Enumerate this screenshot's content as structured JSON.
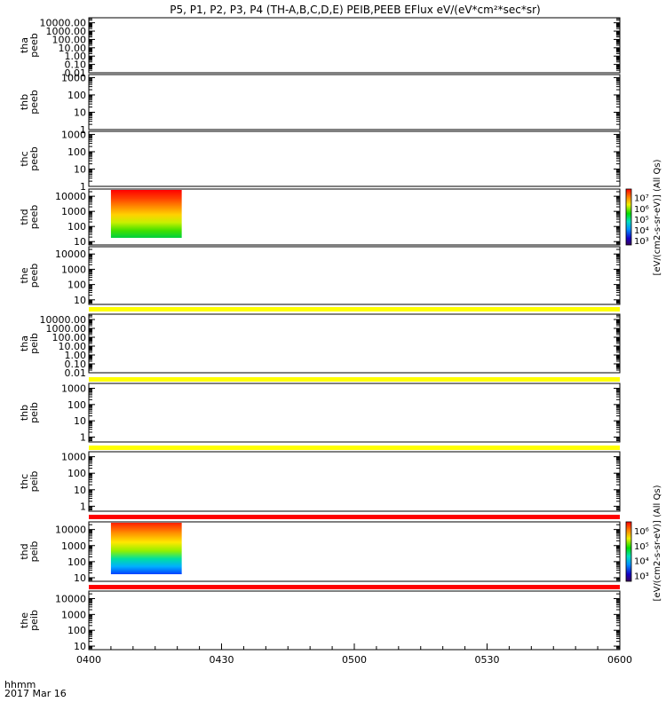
{
  "title": "P5, P1, P2, P3, P4 (TH-A,B,C,D,E) PEIB,PEEB EFlux eV/(eV*cm²*sec*sr)",
  "colors": {
    "background": "#ffffff",
    "axes": "#000000",
    "flag_yellow": "#ffff00",
    "flag_red": "#ff0000"
  },
  "chart_data": {
    "type": "heatmap",
    "panels": [
      {
        "probe": "tha",
        "product": "peeb",
        "ylim": [
          0.01,
          40000
        ],
        "ticks": [
          "10000.00",
          "1000.00",
          "100.00",
          "10.00",
          "1.00",
          "0.10",
          "0.01"
        ],
        "data": false,
        "flag_bar_above": null
      },
      {
        "probe": "thb",
        "product": "peeb",
        "ylim": [
          1,
          1500
        ],
        "ticks": [
          "1000",
          "100",
          "10",
          "1"
        ],
        "data": false,
        "flag_bar_above": null
      },
      {
        "probe": "thc",
        "product": "peeb",
        "ylim": [
          1,
          1500
        ],
        "ticks": [
          "1000",
          "100",
          "10",
          "1"
        ],
        "data": false,
        "flag_bar_above": null
      },
      {
        "probe": "thd",
        "product": "peeb",
        "ylim": [
          6,
          30000
        ],
        "ticks": [
          "10000",
          "1000",
          "100",
          "10"
        ],
        "data": true,
        "data_time": [
          "0405",
          "0421"
        ],
        "flag_bar_above": null
      },
      {
        "probe": "the",
        "product": "peeb",
        "ylim": [
          5,
          30000
        ],
        "ticks": [
          "10000",
          "1000",
          "100",
          "10"
        ],
        "data": false,
        "flag_bar_above": null
      },
      {
        "probe": "tha",
        "product": "peib",
        "ylim": [
          0.01,
          40000
        ],
        "ticks": [
          "10000.00",
          "1000.00",
          "100.00",
          "10.00",
          "1.00",
          "0.10",
          "0.01"
        ],
        "data": false,
        "flag_bar_above": "#ffff00"
      },
      {
        "probe": "thb",
        "product": "peib",
        "ylim": [
          0.5,
          2000
        ],
        "ticks": [
          "1000",
          "100",
          "10",
          "1"
        ],
        "data": false,
        "flag_bar_above": "#ffff00"
      },
      {
        "probe": "thc",
        "product": "peib",
        "ylim": [
          0.5,
          2000
        ],
        "ticks": [
          "1000",
          "100",
          "10",
          "1"
        ],
        "data": false,
        "flag_bar_above": "#ffff00"
      },
      {
        "probe": "thd",
        "product": "peib",
        "ylim": [
          6,
          30000
        ],
        "ticks": [
          "10000",
          "1000",
          "100",
          "10"
        ],
        "data": true,
        "data_time": [
          "0405",
          "0421"
        ],
        "flag_bar_above": "#ff0000"
      },
      {
        "probe": "the",
        "product": "peib",
        "ylim": [
          6,
          30000
        ],
        "ticks": [
          "10000",
          "1000",
          "100",
          "10"
        ],
        "data": false,
        "flag_bar_above": "#ff0000"
      }
    ],
    "x_ticks": [
      "0400",
      "0430",
      "0500",
      "0530",
      "0600"
    ],
    "x_range": [
      "0400",
      "0600"
    ],
    "x_label": "hhmm",
    "date_label": "2017 Mar 16",
    "colorbars": [
      {
        "panel": "thd peeb",
        "label": "[eV/(cm2-s-sr-eV)] (All Qs)",
        "ticks": [
          "10⁷",
          "10⁶",
          "10⁵",
          "10⁴",
          "10³"
        ],
        "range_exp": [
          2.6,
          7.8
        ]
      },
      {
        "panel": "thd peib",
        "label": "[eV/(cm2-s-sr-eV)] (All Qs)",
        "ticks": [
          "10⁶",
          "10⁵",
          "10⁴",
          "10³"
        ],
        "range_exp": [
          2.6,
          6.6
        ]
      }
    ]
  }
}
